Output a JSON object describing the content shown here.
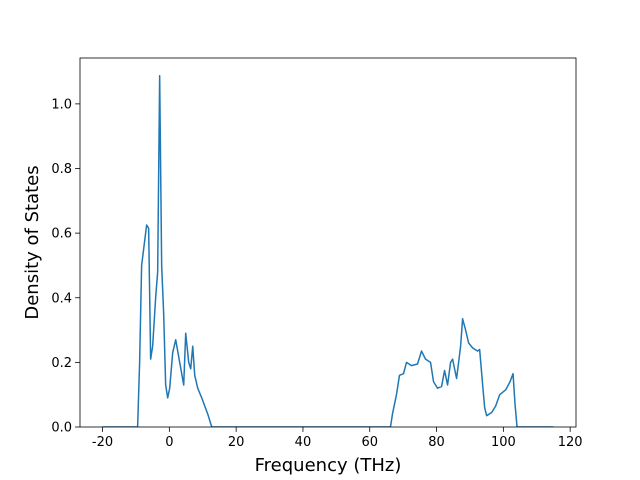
{
  "chart_data": {
    "type": "line",
    "xlabel": "Frequency (THz)",
    "ylabel": "Density of States",
    "x": [
      -20,
      -9.5,
      -8.9,
      -8.3,
      -6.8,
      -6.2,
      -5.6,
      -5.0,
      -4.1,
      -3.5,
      -2.9,
      -2.3,
      -1.7,
      -1.1,
      -0.5,
      0.1,
      1.0,
      1.9,
      3.1,
      4.3,
      4.9,
      5.8,
      6.4,
      7.0,
      7.6,
      8.5,
      9.7,
      11.5,
      12.7,
      66.2,
      66.8,
      68.0,
      68.9,
      70.1,
      71.0,
      72.5,
      74.3,
      75.5,
      76.7,
      78.2,
      79.1,
      80.3,
      81.5,
      82.4,
      83.3,
      84.2,
      84.8,
      85.4,
      86.0,
      87.2,
      87.8,
      88.7,
      89.6,
      90.8,
      92.3,
      92.9,
      93.8,
      94.4,
      95.0,
      96.5,
      97.7,
      98.9,
      100.7,
      102.0,
      102.9,
      103.5,
      104.1,
      115
    ],
    "series": [
      {
        "color": "#1f77b4",
        "values": [
          0,
          0,
          0.2,
          0.5,
          0.625,
          0.615,
          0.21,
          0.25,
          0.4,
          0.48,
          1.087,
          0.5,
          0.35,
          0.13,
          0.09,
          0.12,
          0.23,
          0.27,
          0.2,
          0.13,
          0.29,
          0.2,
          0.18,
          0.25,
          0.16,
          0.12,
          0.09,
          0.04,
          0,
          0,
          0.04,
          0.1,
          0.16,
          0.165,
          0.2,
          0.19,
          0.195,
          0.235,
          0.21,
          0.2,
          0.14,
          0.12,
          0.125,
          0.175,
          0.13,
          0.2,
          0.21,
          0.18,
          0.15,
          0.25,
          0.335,
          0.3,
          0.26,
          0.245,
          0.235,
          0.24,
          0.13,
          0.06,
          0.035,
          0.045,
          0.065,
          0.1,
          0.115,
          0.14,
          0.165,
          0.07,
          0,
          0
        ]
      }
    ],
    "xlim": [
      -26.75,
      121.75
    ],
    "xticks": [
      -20,
      0,
      20,
      40,
      60,
      80,
      100,
      120
    ],
    "ylim": [
      0,
      1.142
    ],
    "yticks": [
      {
        "value": 0,
        "label": "0.0"
      },
      0.2,
      0.4,
      0.6,
      0.8,
      {
        "value": 1.0,
        "label": "1.0"
      }
    ]
  }
}
